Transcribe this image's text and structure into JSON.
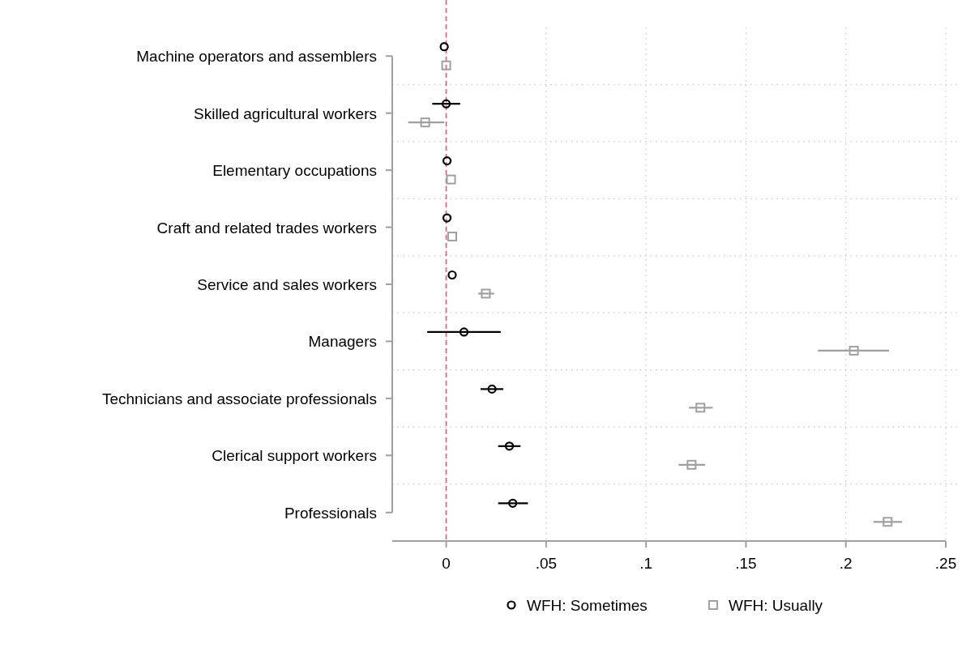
{
  "chart_data": {
    "type": "scatter",
    "orientation": "horizontal",
    "categories": [
      "Machine operators and assemblers",
      "Skilled agricultural workers",
      "Elementary occupations",
      "Craft and related trades workers",
      "Service and sales workers",
      "Managers",
      "Technicians and associate professionals",
      "Clerical support workers",
      "Professionals"
    ],
    "series": [
      {
        "name": "WFH: Sometimes",
        "color": "#000000",
        "marker": "circle",
        "values": [
          -0.001,
          0.0,
          0.0004,
          0.0004,
          0.003,
          0.0089,
          0.0229,
          0.0316,
          0.0333
        ],
        "errors": [
          null,
          [
            -0.007,
            0.007
          ],
          null,
          null,
          null,
          [
            -0.0095,
            0.0273
          ],
          [
            0.0172,
            0.0286
          ],
          [
            0.026,
            0.0372
          ],
          [
            0.026,
            0.0409
          ]
        ]
      },
      {
        "name": "WFH: Usually",
        "color": "#a0a0a0",
        "marker": "square",
        "values": [
          0.0,
          -0.0105,
          0.0024,
          0.003,
          0.0198,
          0.204,
          0.1272,
          0.1228,
          0.2209
        ],
        "errors": [
          null,
          [
            -0.019,
            -0.001
          ],
          null,
          null,
          [
            0.016,
            0.024
          ],
          [
            0.186,
            0.2216
          ],
          [
            0.1215,
            0.1334
          ],
          [
            0.1163,
            0.1295
          ],
          [
            0.2138,
            0.2282
          ]
        ]
      }
    ],
    "xlim": [
      -0.027,
      0.25
    ],
    "xticks": [
      0,
      {
        "value": 0.05,
        "label": ".05"
      },
      {
        "value": 0.1,
        "label": ".1"
      },
      {
        "value": 0.15,
        "label": ".15"
      },
      {
        "value": 0.2,
        "label": ".2"
      },
      {
        "value": 0.25,
        "label": ".25"
      }
    ],
    "ref_lines": [
      {
        "axis": "x",
        "value": 0,
        "color": "#d06a9c",
        "line_style": "dashed"
      }
    ],
    "grid": true,
    "legend": "bottom"
  }
}
